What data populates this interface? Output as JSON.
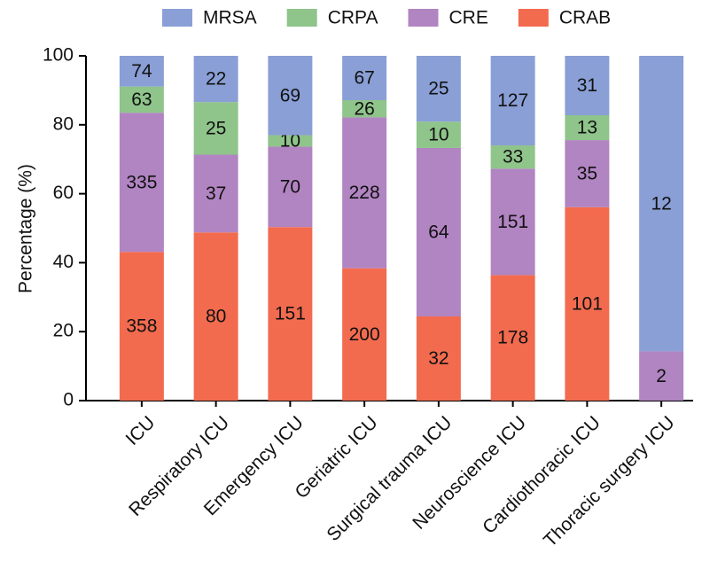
{
  "chart_data": {
    "type": "bar",
    "stacking": "percent",
    "y_label": "Percentage (%)",
    "categories": [
      "ICU",
      "Respiratory ICU",
      "Emergency ICU",
      "Geriatric ICU",
      "Surgical trauma ICU",
      "Neuroscience ICU",
      "Cardiothoracic ICU",
      "Thoracic surgery ICU"
    ],
    "series": [
      {
        "name": "CRAB",
        "color": "#f26b4f",
        "values": [
          358,
          80,
          151,
          200,
          32,
          178,
          101,
          null
        ]
      },
      {
        "name": "CRE",
        "color": "#b184c2",
        "values": [
          335,
          37,
          70,
          228,
          64,
          151,
          35,
          2
        ]
      },
      {
        "name": "CRPA",
        "color": "#8fc48a",
        "values": [
          63,
          25,
          10,
          26,
          10,
          33,
          13,
          null
        ]
      },
      {
        "name": "MRSA",
        "color": "#8a9fd6",
        "values": [
          74,
          22,
          69,
          67,
          25,
          127,
          31,
          12
        ]
      }
    ],
    "ylim": [
      0,
      100
    ],
    "yticks": [
      0,
      20,
      40,
      60,
      80,
      100
    ],
    "legend": "top"
  }
}
